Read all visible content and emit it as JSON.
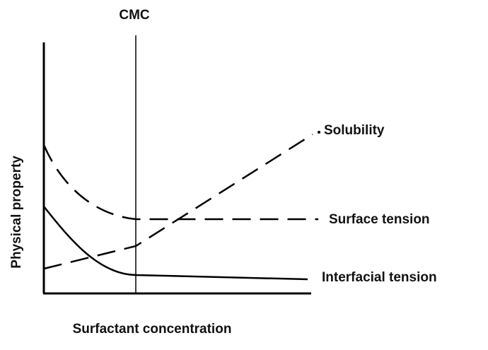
{
  "labels": {
    "cmc": "CMC",
    "solubility": "Solubility",
    "surface_tension": "Surface tension",
    "interfacial_tension": "Interfacial tension"
  },
  "axes": {
    "y_label": "Physical property",
    "x_label": "Surfactant concentration"
  }
}
